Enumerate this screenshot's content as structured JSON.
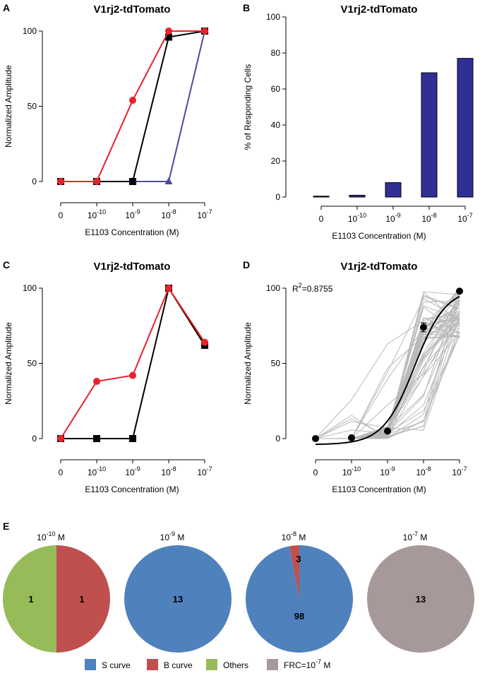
{
  "chart_data": [
    {
      "panel": "A",
      "type": "line",
      "title": "V1rj2-tdTomato",
      "xlabel": "E1103 Concentration (M)",
      "ylabel": "Normalized Amplitude",
      "categories": [
        {
          "base": "0",
          "exp": ""
        },
        {
          "base": "10",
          "exp": "-10"
        },
        {
          "base": "10",
          "exp": "-9"
        },
        {
          "base": "10",
          "exp": "-8"
        },
        {
          "base": "10",
          "exp": "-7"
        }
      ],
      "ylim": [
        0,
        100
      ],
      "yticks": [
        0,
        50,
        100
      ],
      "series": [
        {
          "name": "red",
          "color": "#e8222a",
          "marker": "circle",
          "values": [
            0,
            0,
            54,
            100,
            100
          ]
        },
        {
          "name": "black",
          "color": "#000000",
          "marker": "square",
          "values": [
            0,
            0,
            0,
            96,
            100
          ]
        },
        {
          "name": "blue",
          "color": "#4b4b9a",
          "marker": "triangle",
          "values": [
            0,
            0,
            0,
            0,
            100
          ]
        }
      ]
    },
    {
      "panel": "B",
      "type": "bar",
      "title": "V1rj2-tdTomato",
      "xlabel": "E1103 Concentration (M)",
      "ylabel": "% of Responding Cells",
      "categories": [
        {
          "base": "0",
          "exp": ""
        },
        {
          "base": "10",
          "exp": "-10"
        },
        {
          "base": "10",
          "exp": "-9"
        },
        {
          "base": "10",
          "exp": "-8"
        },
        {
          "base": "10",
          "exp": "-7"
        }
      ],
      "values": [
        0.5,
        1,
        8,
        69,
        77
      ],
      "bar_color": "#2f2f96",
      "ylim": [
        0,
        100
      ],
      "yticks": [
        0,
        20,
        40,
        60,
        80,
        100
      ]
    },
    {
      "panel": "C",
      "type": "line",
      "title": "V1rj2-tdTomato",
      "xlabel": "E1103 Concentration (M)",
      "ylabel": "Normalized Amplitude",
      "categories": [
        {
          "base": "0",
          "exp": ""
        },
        {
          "base": "10",
          "exp": "-10"
        },
        {
          "base": "10",
          "exp": "-9"
        },
        {
          "base": "10",
          "exp": "-8"
        },
        {
          "base": "10",
          "exp": "-7"
        }
      ],
      "ylim": [
        0,
        100
      ],
      "yticks": [
        0,
        50,
        100
      ],
      "series": [
        {
          "name": "red",
          "color": "#e8222a",
          "marker": "circle",
          "values": [
            0,
            38,
            42,
            100,
            64
          ]
        },
        {
          "name": "black",
          "color": "#000000",
          "marker": "square",
          "values": [
            0,
            0,
            0,
            100,
            62
          ]
        }
      ]
    },
    {
      "panel": "D",
      "type": "line",
      "title": "V1rj2-tdTomato",
      "xlabel": "E1103 Concentration (M)",
      "ylabel": "Normalized Amplitude",
      "annotation": {
        "text": "R",
        "sup": "2",
        "rest": "=0.8755"
      },
      "categories": [
        {
          "base": "0",
          "exp": ""
        },
        {
          "base": "10",
          "exp": "-10"
        },
        {
          "base": "10",
          "exp": "-9"
        },
        {
          "base": "10",
          "exp": "-8"
        },
        {
          "base": "10",
          "exp": "-7"
        }
      ],
      "ylim": [
        0,
        100
      ],
      "yticks": [
        0,
        50,
        100
      ],
      "mean_points": [
        {
          "x": 0,
          "y": 0
        },
        {
          "x": 1,
          "y": 0.5
        },
        {
          "x": 2,
          "y": 5
        },
        {
          "x": 3,
          "y": 74,
          "err": 3
        },
        {
          "x": 4,
          "y": 98
        }
      ],
      "fit_curve_description": "sigmoid fit, rising from about -3 at 0 to about 99 at 10^-7",
      "individual_traces_color": "#b9b9b9"
    },
    {
      "panel": "E",
      "type": "pie",
      "pies": [
        {
          "conc_base": "10",
          "conc_exp": "-10",
          "unit": "M",
          "slices": [
            {
              "label": "Others",
              "value": 1,
              "color": "#98bb59"
            },
            {
              "label": "B curve",
              "value": 1,
              "color": "#c0504d"
            }
          ]
        },
        {
          "conc_base": "10",
          "conc_exp": "-9",
          "unit": "M",
          "slices": [
            {
              "label": "S curve",
              "value": 13,
              "color": "#4f81bd"
            }
          ]
        },
        {
          "conc_base": "10",
          "conc_exp": "-8",
          "unit": "M",
          "slices": [
            {
              "label": "B curve",
              "value": 3,
              "color": "#c0504d"
            },
            {
              "label": "S curve",
              "value": 98,
              "color": "#4f81bd"
            }
          ]
        },
        {
          "conc_base": "10",
          "conc_exp": "-7",
          "unit": "M",
          "slices": [
            {
              "label": "FRC=10^-7 M",
              "value": 13,
              "color": "#a7989a"
            }
          ]
        }
      ],
      "legend": [
        {
          "label": "S curve",
          "color": "#4f81bd"
        },
        {
          "label": "B curve",
          "color": "#c0504d"
        },
        {
          "label": "Others",
          "color": "#98bb59"
        },
        {
          "label": "FRC=10",
          "sup": "-7",
          "tail": " M",
          "color": "#a7989a"
        }
      ]
    }
  ]
}
